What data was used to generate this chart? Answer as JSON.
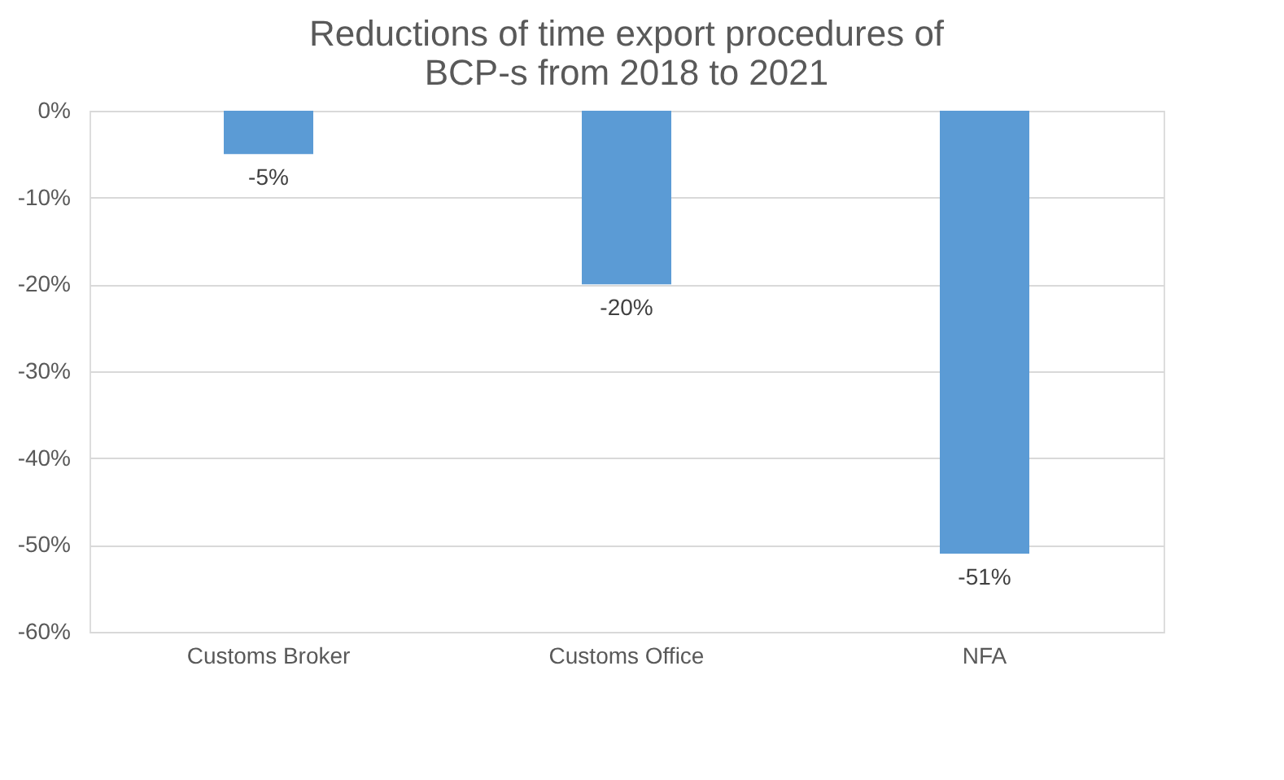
{
  "chart_data": {
    "type": "bar",
    "title": "Reductions of time export procedures of BCP-s from 2018 to 2021",
    "categories": [
      "Customs Broker",
      "Customs Office",
      "NFA"
    ],
    "values": [
      -5,
      -20,
      -51
    ],
    "color": "#5b9bd5",
    "value_labels": [
      "-5%",
      "-20%",
      "-51%"
    ],
    "ylim": [
      -60,
      0
    ],
    "yticks": [
      {
        "value": 0,
        "label": "0%"
      },
      {
        "value": -10,
        "label": "-10%"
      },
      {
        "value": -20,
        "label": "-20%"
      },
      {
        "value": -30,
        "label": "-30%"
      },
      {
        "value": -40,
        "label": "-40%"
      },
      {
        "value": -50,
        "label": "-50%"
      },
      {
        "value": -60,
        "label": "-60%"
      }
    ],
    "grid": "y"
  }
}
